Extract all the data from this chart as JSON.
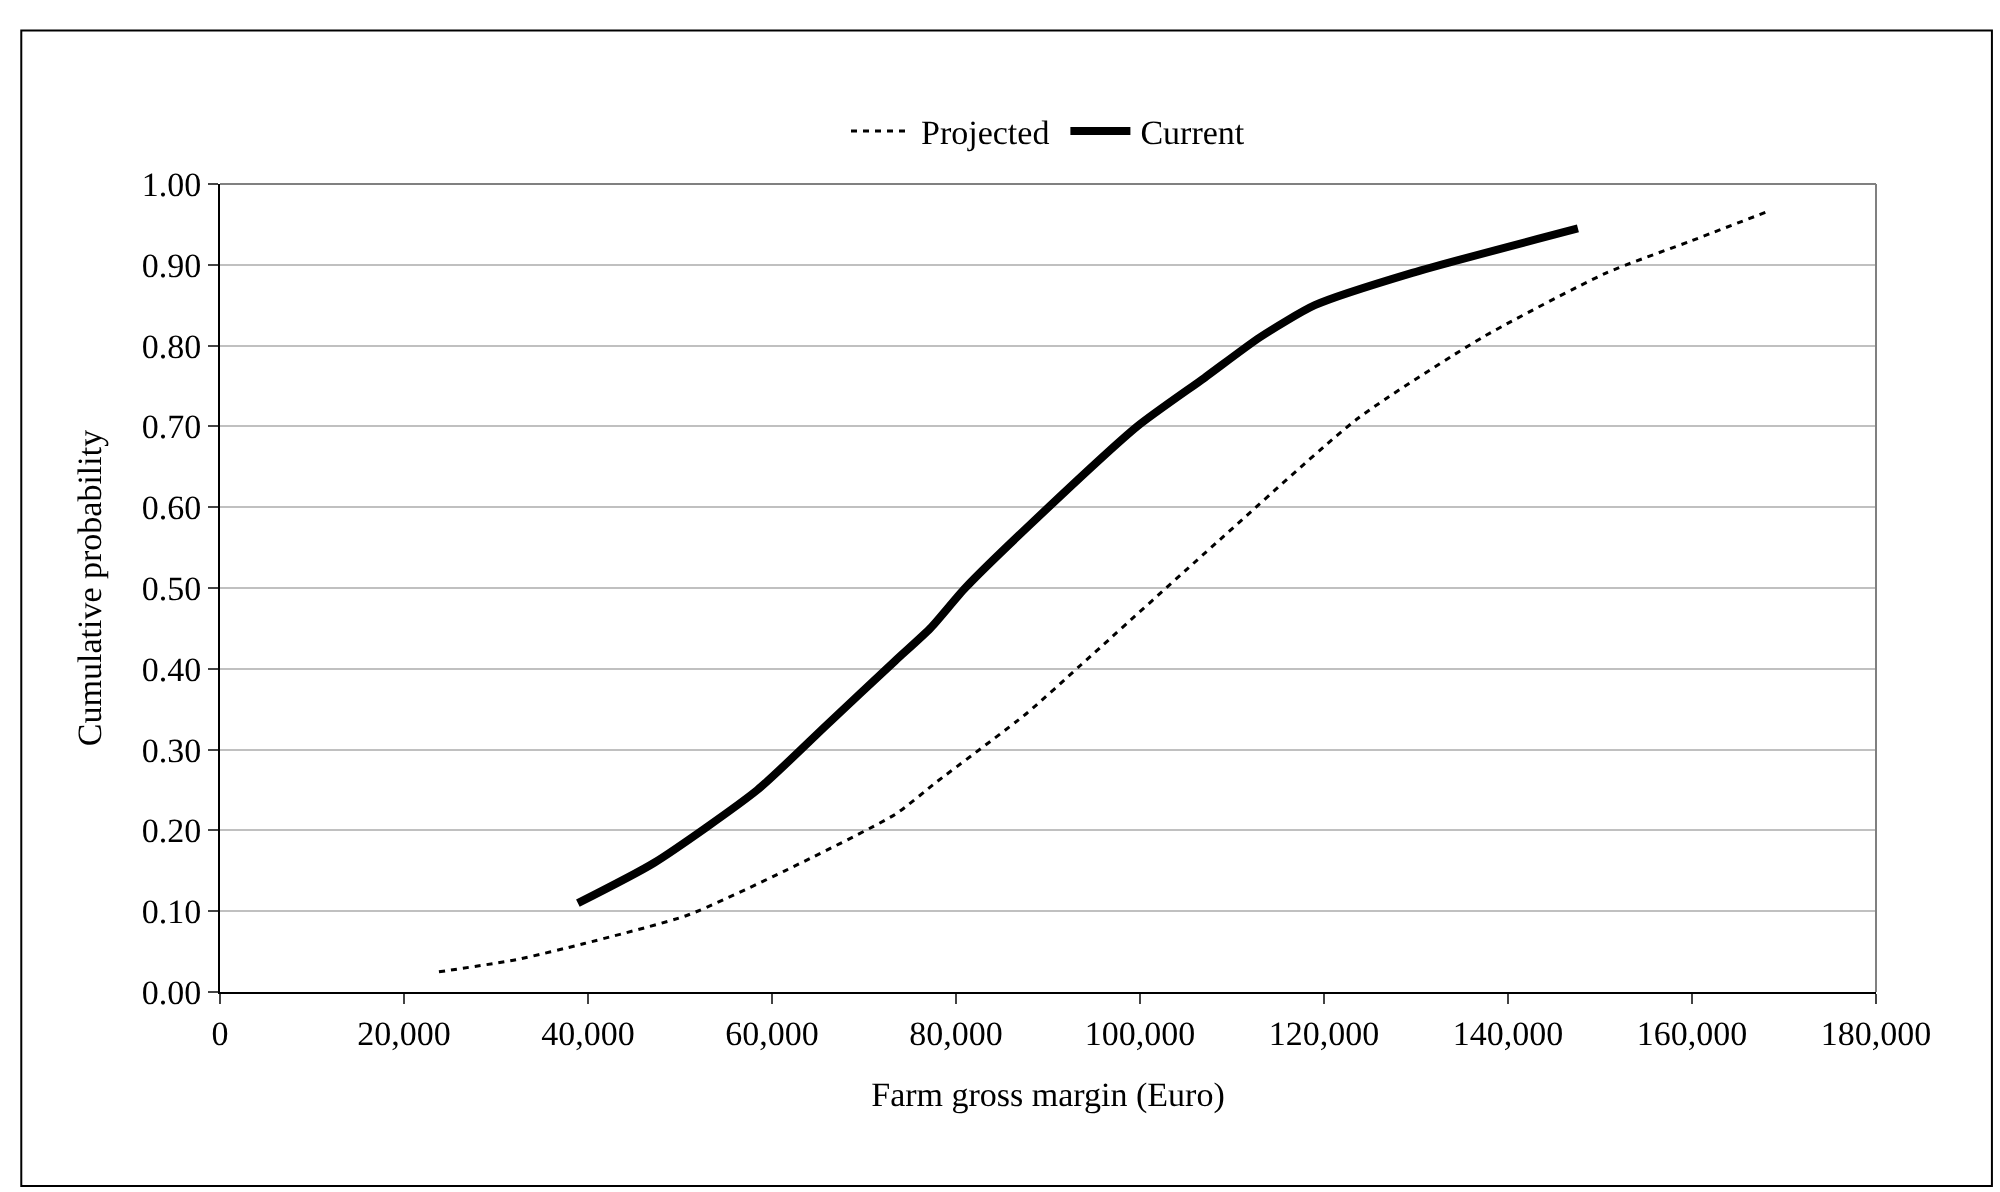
{
  "chart_data": {
    "type": "line",
    "xlabel": "Farm gross margin (Euro)",
    "ylabel": "Cumulative probability",
    "xlim": [
      0,
      180000
    ],
    "xticks": [
      0,
      {
        "value": 20000,
        "label": "20,000"
      },
      {
        "value": 40000,
        "label": "40,000"
      },
      {
        "value": 60000,
        "label": "60,000"
      },
      {
        "value": 80000,
        "label": "80,000"
      },
      {
        "value": 100000,
        "label": "100,000"
      },
      {
        "value": 120000,
        "label": "120,000"
      },
      {
        "value": 140000,
        "label": "140,000"
      },
      {
        "value": 160000,
        "label": "160,000"
      },
      {
        "value": 180000,
        "label": "180,000"
      }
    ],
    "ylim": [
      0,
      1
    ],
    "yticks": [
      {
        "value": 0,
        "label": "0.00"
      },
      {
        "value": 0.1,
        "label": "0.10"
      },
      {
        "value": 0.2,
        "label": "0.20"
      },
      {
        "value": 0.3,
        "label": "0.30"
      },
      {
        "value": 0.4,
        "label": "0.40"
      },
      {
        "value": 0.5,
        "label": "0.50"
      },
      {
        "value": 0.6,
        "label": "0.60"
      },
      {
        "value": 0.7,
        "label": "0.70"
      },
      {
        "value": 0.8,
        "label": "0.80"
      },
      {
        "value": 0.9,
        "label": "0.90"
      },
      {
        "value": 1.0,
        "label": "1.00"
      }
    ],
    "grid": "y",
    "legend": "top",
    "marker": "none",
    "series": [
      {
        "name": "Projected",
        "color": "#000000",
        "line_style": "dotted",
        "x": [
          23800,
          32200,
          39600,
          50800,
          61400,
          73400,
          77900,
          87700,
          93600,
          108700,
          123700,
          137200,
          150700,
          160000,
          168000
        ],
        "values": [
          0.025,
          0.04,
          0.06,
          0.095,
          0.15,
          0.22,
          0.26,
          0.345,
          0.405,
          0.56,
          0.71,
          0.81,
          0.89,
          0.93,
          0.965
        ]
      },
      {
        "name": "Current",
        "color": "#000000",
        "line_style": "solid",
        "x": [
          38900,
          47200,
          58400,
          65900,
          73400,
          77200,
          81000,
          88200,
          99700,
          107000,
          113000,
          119000,
          129600,
          147600
        ],
        "values": [
          0.11,
          0.16,
          0.25,
          0.33,
          0.41,
          0.45,
          0.5,
          0.58,
          0.7,
          0.76,
          0.81,
          0.85,
          0.89,
          0.945
        ]
      }
    ]
  }
}
